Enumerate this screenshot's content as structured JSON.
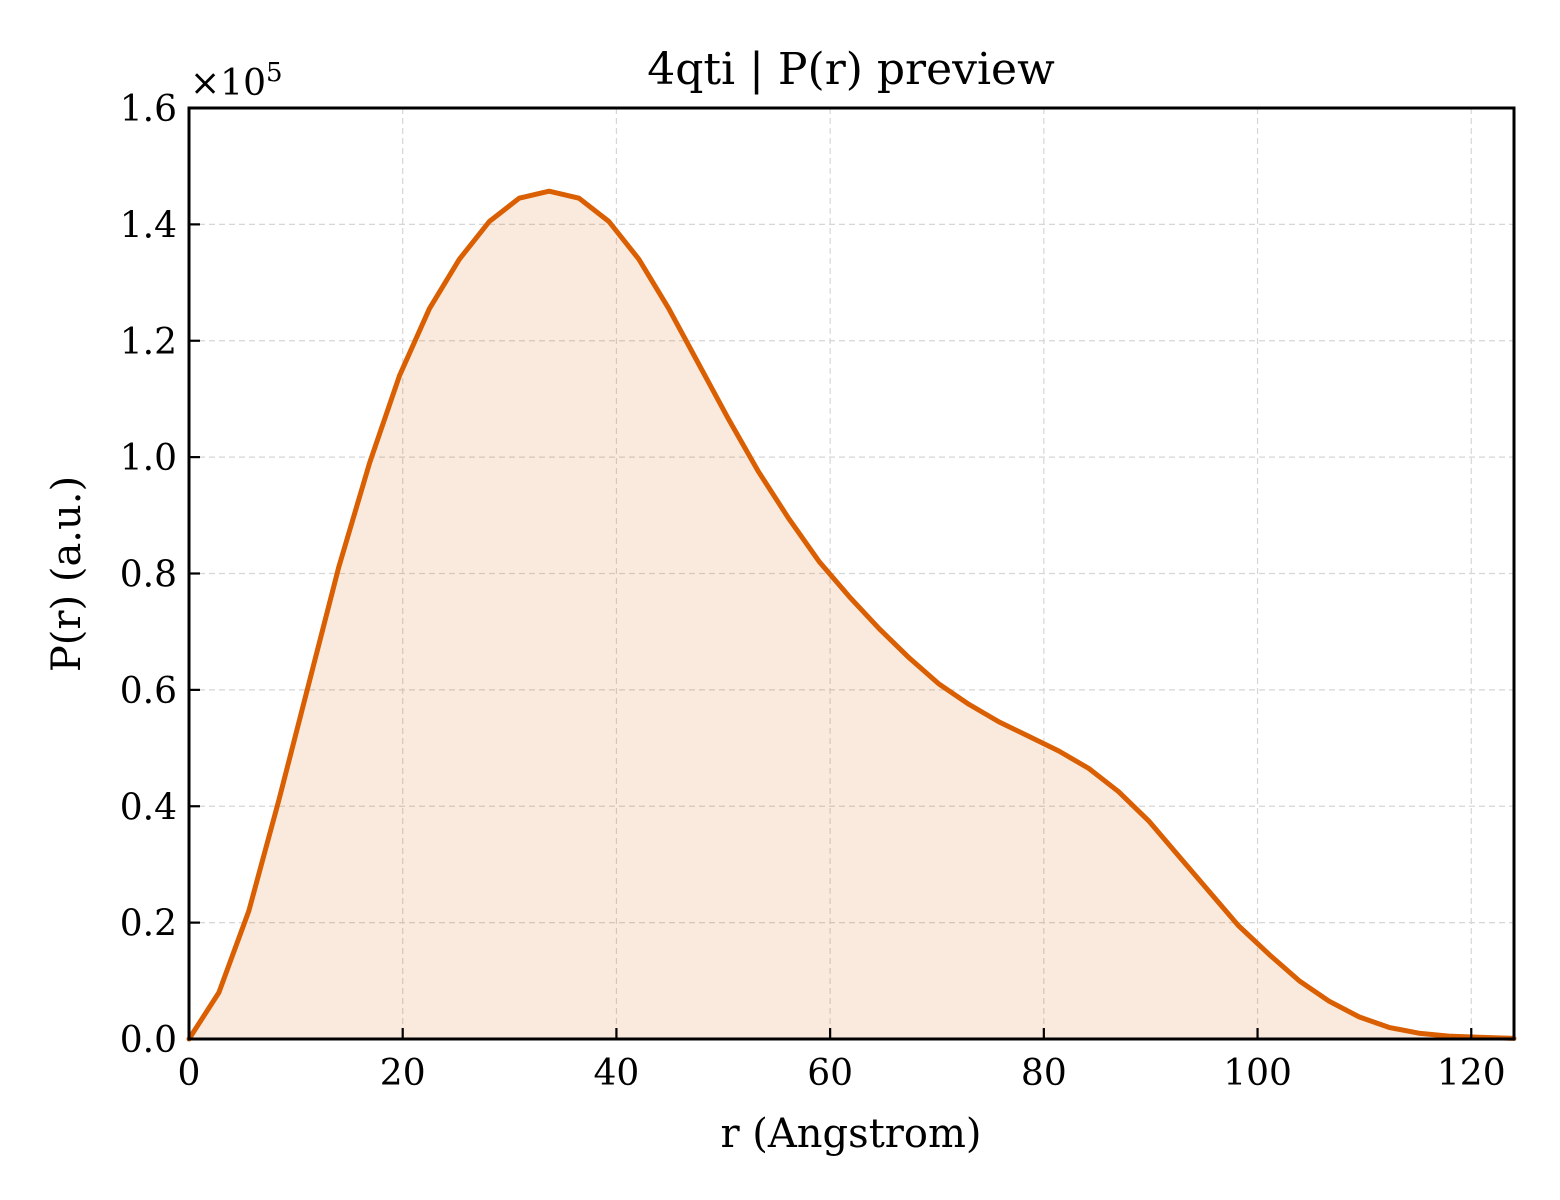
{
  "chart_data": {
    "type": "area",
    "title": "4qti | P(r) preview",
    "xlabel": "r (Angstrom)",
    "ylabel": "P(r) (a.u.)",
    "y_multiplier": "×10",
    "y_multiplier_exponent": "5",
    "xlim": [
      0,
      124
    ],
    "ylim": [
      0,
      1.6
    ],
    "x_ticks": [
      0,
      20,
      40,
      60,
      80,
      100,
      120
    ],
    "x_tick_labels": [
      "0",
      "20",
      "40",
      "60",
      "80",
      "100",
      "120"
    ],
    "y_ticks": [
      0,
      0.2,
      0.4,
      0.6,
      0.8,
      1.0,
      1.2,
      1.4,
      1.6
    ],
    "y_tick_labels": [
      "0.0",
      "0.2",
      "0.4",
      "0.6",
      "0.8",
      "1.0",
      "1.2",
      "1.4",
      "1.6"
    ],
    "grid": true,
    "colors": {
      "line": "#d95f02",
      "fill": "#d95f02"
    },
    "series": [
      {
        "x": [
          0,
          2.8,
          5.6,
          8.4,
          11.2,
          14.0,
          16.9,
          19.7,
          22.5,
          25.3,
          28.1,
          30.9,
          33.7,
          36.5,
          39.3,
          42.1,
          44.9,
          47.7,
          50.5,
          53.3,
          56.1,
          59.0,
          61.8,
          64.6,
          67.4,
          70.2,
          73.0,
          75.8,
          78.6,
          81.4,
          84.2,
          87.0,
          89.8,
          92.6,
          95.4,
          98.2,
          101.1,
          103.9,
          106.7,
          109.5,
          112.3,
          115.1,
          117.9,
          120.7,
          124.0
        ],
        "values": [
          0,
          0.08,
          0.22,
          0.41,
          0.61,
          0.81,
          0.99,
          1.14,
          1.255,
          1.34,
          1.405,
          1.445,
          1.457,
          1.445,
          1.405,
          1.34,
          1.255,
          1.16,
          1.065,
          0.975,
          0.895,
          0.82,
          0.76,
          0.705,
          0.655,
          0.61,
          0.575,
          0.545,
          0.52,
          0.495,
          0.465,
          0.425,
          0.375,
          0.315,
          0.255,
          0.195,
          0.145,
          0.1,
          0.065,
          0.038,
          0.02,
          0.01,
          0.005,
          0.003,
          0.001
        ]
      }
    ]
  }
}
